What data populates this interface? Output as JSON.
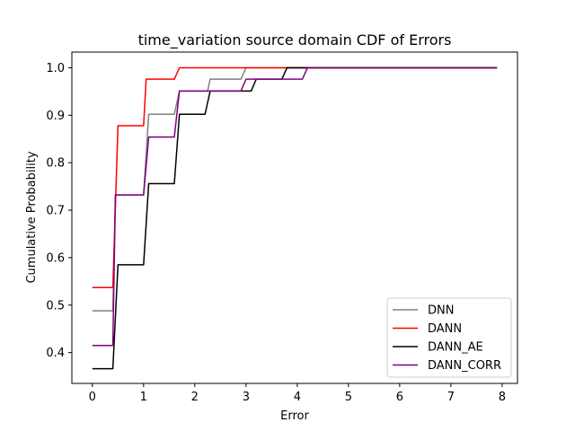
{
  "chart_data": {
    "type": "line",
    "title": "time_variation source domain CDF of Errors",
    "xlabel": "Error",
    "ylabel": "Cumulative Probability",
    "xlim": [
      -0.4,
      8.3
    ],
    "ylim": [
      0.335,
      1.033
    ],
    "xticks": [
      0,
      1,
      2,
      3,
      4,
      5,
      6,
      7,
      8
    ],
    "yticks": [
      0.4,
      0.5,
      0.6,
      0.7,
      0.8,
      0.9,
      1.0
    ],
    "ytick_labels": [
      "0.4",
      "0.5",
      "0.6",
      "0.7",
      "0.8",
      "0.9",
      "1.0"
    ],
    "legend_position": "lower-right",
    "grid": false,
    "series": [
      {
        "name": "DNN",
        "color": "#808080",
        "points": [
          [
            0,
            0.488
          ],
          [
            0.4,
            0.488
          ],
          [
            0.45,
            0.732
          ],
          [
            1.0,
            0.732
          ],
          [
            1.1,
            0.902
          ],
          [
            1.6,
            0.902
          ],
          [
            1.7,
            0.951
          ],
          [
            2.25,
            0.951
          ],
          [
            2.3,
            0.976
          ],
          [
            2.9,
            0.976
          ],
          [
            3.0,
            1.0
          ],
          [
            7.9,
            1.0
          ]
        ]
      },
      {
        "name": "DANN",
        "color": "#ff0000",
        "points": [
          [
            0,
            0.537
          ],
          [
            0.4,
            0.537
          ],
          [
            0.5,
            0.878
          ],
          [
            1.0,
            0.878
          ],
          [
            1.05,
            0.976
          ],
          [
            1.6,
            0.976
          ],
          [
            1.7,
            1.0
          ],
          [
            7.9,
            1.0
          ]
        ]
      },
      {
        "name": "DANN_AE",
        "color": "#000000",
        "points": [
          [
            0,
            0.366
          ],
          [
            0.4,
            0.366
          ],
          [
            0.5,
            0.585
          ],
          [
            1.0,
            0.585
          ],
          [
            1.1,
            0.756
          ],
          [
            1.6,
            0.756
          ],
          [
            1.7,
            0.902
          ],
          [
            2.2,
            0.902
          ],
          [
            2.3,
            0.951
          ],
          [
            3.1,
            0.951
          ],
          [
            3.2,
            0.976
          ],
          [
            3.7,
            0.976
          ],
          [
            3.8,
            1.0
          ],
          [
            7.9,
            1.0
          ]
        ]
      },
      {
        "name": "DANN_CORR",
        "color": "#800080",
        "points": [
          [
            0,
            0.415
          ],
          [
            0.4,
            0.415
          ],
          [
            0.45,
            0.732
          ],
          [
            1.0,
            0.732
          ],
          [
            1.1,
            0.854
          ],
          [
            1.6,
            0.854
          ],
          [
            1.7,
            0.951
          ],
          [
            2.9,
            0.951
          ],
          [
            3.0,
            0.976
          ],
          [
            4.1,
            0.976
          ],
          [
            4.2,
            1.0
          ],
          [
            7.9,
            1.0
          ]
        ]
      }
    ]
  }
}
